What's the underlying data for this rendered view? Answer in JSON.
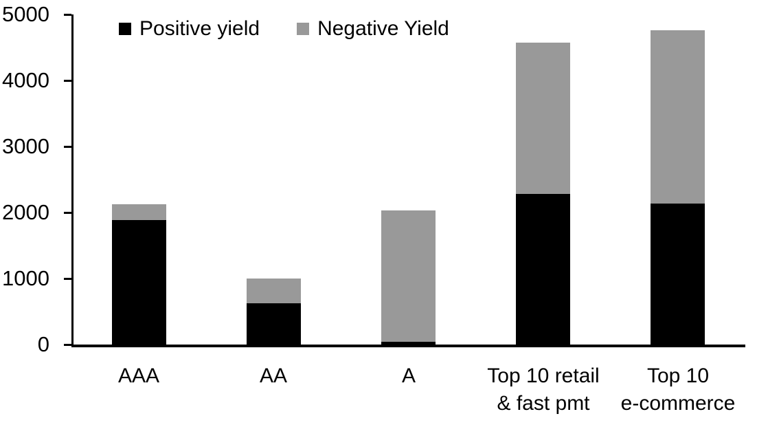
{
  "chart_data": {
    "type": "bar",
    "stacked": true,
    "title": "",
    "xlabel": "",
    "ylabel": "",
    "categories": [
      "AAA",
      "AA",
      "A",
      "Top 10 retail\n& fast pmt",
      "Top 10\ne-commerce"
    ],
    "series": [
      {
        "name": "Positive yield",
        "color": "#000000",
        "values": [
          1890,
          620,
          40,
          2280,
          2140
        ]
      },
      {
        "name": "Negative Yield",
        "color": "#999999",
        "values": [
          230,
          385,
          1990,
          2290,
          2620
        ]
      }
    ],
    "totals": [
      2120,
      1005,
      2030,
      4570,
      4760
    ],
    "ylim": [
      0,
      5000
    ],
    "yticks": [
      0,
      1000,
      2000,
      3000,
      4000,
      5000
    ],
    "grid": false,
    "legend_position": "top-left",
    "axis_color": "#000000",
    "background_color": "#ffffff"
  }
}
